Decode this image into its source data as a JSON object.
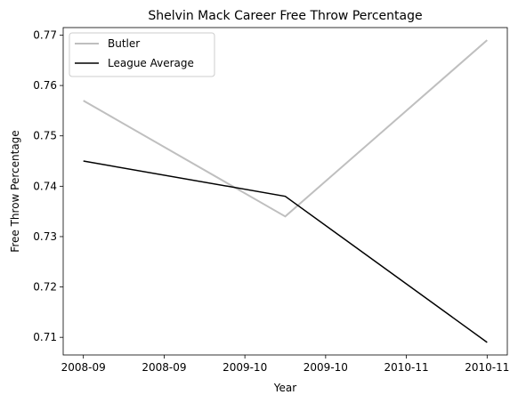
{
  "chart_data": {
    "type": "line",
    "title": "Shelvin Mack Career Free Throw Percentage",
    "xlabel": "Year",
    "ylabel": "Free Throw Percentage",
    "x_ticks": [
      "2008-09",
      "2008-09",
      "2009-10",
      "2009-10",
      "2010-11",
      "2010-11"
    ],
    "x_positions": [
      0,
      0.5,
      1,
      1.5,
      2
    ],
    "x_tick_positions": [
      0,
      0.4,
      0.8,
      1.2,
      1.6,
      2.0
    ],
    "ylim": [
      0.7065,
      0.7715
    ],
    "xlim": [
      -0.1,
      2.1
    ],
    "y_ticks": [
      0.71,
      0.72,
      0.73,
      0.74,
      0.75,
      0.76,
      0.77
    ],
    "series": [
      {
        "name": "Butler",
        "x": [
          0,
          1,
          2
        ],
        "values": [
          0.757,
          0.734,
          0.769
        ],
        "color": "#bfbfbf",
        "width": 2
      },
      {
        "name": "League Average",
        "x": [
          0,
          1,
          2
        ],
        "values": [
          0.745,
          0.738,
          0.709
        ],
        "color": "#000000",
        "width": 1.5
      }
    ],
    "legend": {
      "placement": "upper-left"
    },
    "grid": false
  }
}
